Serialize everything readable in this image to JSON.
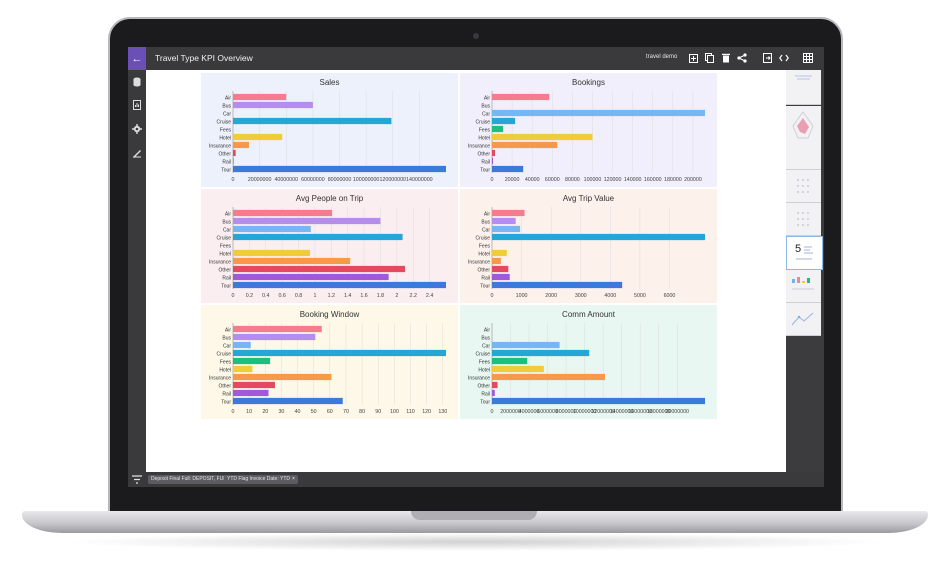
{
  "app": {
    "title": "Travel Type KPI Overview",
    "user": "travel demo",
    "back_icon": "arrow-left-icon"
  },
  "toolbar_icons": [
    "add-icon",
    "copy-icon",
    "delete-icon",
    "share-icon",
    "export-icon",
    "code-icon",
    "grid-icon"
  ],
  "sidebar_icons": [
    "database-icon",
    "report-icon",
    "settings-icon",
    "pencil-ruler-icon"
  ],
  "filters": [
    {
      "label": "Deposit Final Full: DEPOSIT, FULL"
    },
    {
      "label": "YTD Flag Invoice Date: YTD"
    }
  ],
  "thumbnails": {
    "active_page": "5"
  },
  "colors": {
    "Air": "#f77b8f",
    "Bus": "#b58cf0",
    "Car": "#75b7f3",
    "Cruise": "#24a7d6",
    "Fees": "#19c07f",
    "Hotel": "#f0cc3a",
    "Insurance": "#f6994a",
    "Other": "#e3495f",
    "Rail": "#a05ad8",
    "Tour": "#3b7ad8"
  },
  "chart_data": [
    {
      "type": "bar",
      "title": "Sales",
      "bg": "#edf1fb",
      "categories": [
        "Air",
        "Bus",
        "Car",
        "Cruise",
        "Fees",
        "Hotel",
        "Insurance",
        "Other",
        "Rail",
        "Tour"
      ],
      "values": [
        40000000,
        60000000,
        0,
        119000000,
        0,
        37000000,
        12000000,
        2000000,
        500000,
        160000000
      ],
      "xlim": [
        0,
        160000000
      ],
      "ticks": [
        "0",
        "20000000",
        "40000000",
        "60000000",
        "80000000",
        "100000000",
        "120000000",
        "140000000"
      ]
    },
    {
      "type": "bar",
      "title": "Bookings",
      "bg": "#f1effc",
      "categories": [
        "Air",
        "Bus",
        "Car",
        "Cruise",
        "Fees",
        "Hotel",
        "Insurance",
        "Other",
        "Rail",
        "Tour"
      ],
      "values": [
        57000,
        0,
        212000,
        23000,
        11000,
        100000,
        65000,
        3000,
        1000,
        31000
      ],
      "xlim": [
        0,
        212000
      ],
      "ticks": [
        "0",
        "20000",
        "40000",
        "60000",
        "80000",
        "100000",
        "120000",
        "140000",
        "160000",
        "180000",
        "200000"
      ]
    },
    {
      "type": "bar",
      "title": "Avg People on Trip",
      "bg": "#fbeef0",
      "categories": [
        "Air",
        "Bus",
        "Car",
        "Cruise",
        "Fees",
        "Hotel",
        "Insurance",
        "Other",
        "Rail",
        "Tour"
      ],
      "values": [
        1.21,
        1.8,
        0.95,
        2.07,
        0,
        0.94,
        1.43,
        2.1,
        1.9,
        2.6
      ],
      "xlim": [
        0,
        2.6
      ],
      "ticks": [
        "0",
        "0.2",
        "0.4",
        "0.6",
        "0.8",
        "1",
        "1.2",
        "1.4",
        "1.6",
        "1.8",
        "2",
        "2.2",
        "2.4"
      ]
    },
    {
      "type": "bar",
      "title": "Avg Trip Value",
      "bg": "#fdf1ec",
      "categories": [
        "Air",
        "Bus",
        "Car",
        "Cruise",
        "Fees",
        "Hotel",
        "Insurance",
        "Other",
        "Rail",
        "Tour"
      ],
      "values": [
        1100,
        800,
        950,
        7200,
        0,
        500,
        300,
        550,
        600,
        4400
      ],
      "xlim": [
        0,
        7200
      ],
      "ticks": [
        "0",
        "1000",
        "2000",
        "3000",
        "4000",
        "5000",
        "6000"
      ]
    },
    {
      "type": "bar",
      "title": "Booking Window",
      "bg": "#fdf8e7",
      "categories": [
        "Air",
        "Bus",
        "Car",
        "Cruise",
        "Fees",
        "Hotel",
        "Insurance",
        "Other",
        "Rail",
        "Tour"
      ],
      "values": [
        55,
        51,
        11,
        132,
        23,
        12,
        61,
        26,
        22,
        68
      ],
      "xlim": [
        0,
        132
      ],
      "ticks": [
        "0",
        "10",
        "20",
        "30",
        "40",
        "50",
        "60",
        "70",
        "80",
        "90",
        "100",
        "110",
        "120",
        "130"
      ]
    },
    {
      "type": "bar",
      "title": "Comm Amount",
      "bg": "#e8f7f2",
      "categories": [
        "Air",
        "Bus",
        "Car",
        "Cruise",
        "Fees",
        "Hotel",
        "Insurance",
        "Other",
        "Rail",
        "Tour"
      ],
      "values": [
        0,
        0,
        7300000,
        10500000,
        3800000,
        5600000,
        12200000,
        600000,
        300000,
        23000000
      ],
      "xlim": [
        0,
        23000000
      ],
      "ticks": [
        "0",
        "2000000",
        "4000000",
        "6000000",
        "8000000",
        "10000000",
        "12000000",
        "14000000",
        "16000000",
        "18000000",
        "20000000"
      ]
    }
  ]
}
